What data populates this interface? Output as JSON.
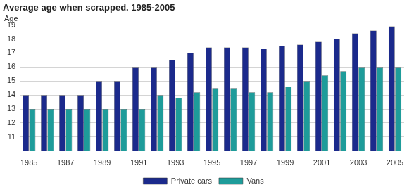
{
  "chart_data": {
    "type": "bar",
    "title": "Average age when scrapped. 1985-2005",
    "ylabel": "Age",
    "categories": [
      "1985",
      null,
      "1987",
      null,
      "1989",
      null,
      "1991",
      null,
      "1993",
      null,
      "1995",
      null,
      "1997",
      null,
      "1999",
      null,
      "2001",
      null,
      "2003",
      null,
      "2005"
    ],
    "series": [
      {
        "name": "Private cars",
        "color": "#1b2a8c",
        "values": [
          14,
          14,
          14,
          14,
          15,
          15,
          16,
          16,
          16.5,
          17,
          17.4,
          17.4,
          17.4,
          17.3,
          17.5,
          17.6,
          17.8,
          18,
          18.4,
          18.6,
          18.9
        ]
      },
      {
        "name": "Vans",
        "color": "#1e9c9a",
        "values": [
          13,
          13,
          13,
          13,
          13,
          13,
          13,
          14,
          13.8,
          14.2,
          14.5,
          14.5,
          14.2,
          14.2,
          14.6,
          15,
          15.4,
          15.7,
          16,
          16,
          16
        ]
      }
    ],
    "ylim": [
      10,
      19
    ],
    "yticks": [
      11,
      12,
      13,
      14,
      15,
      16,
      17,
      18,
      19
    ],
    "grid": true,
    "legend": "bottom"
  }
}
